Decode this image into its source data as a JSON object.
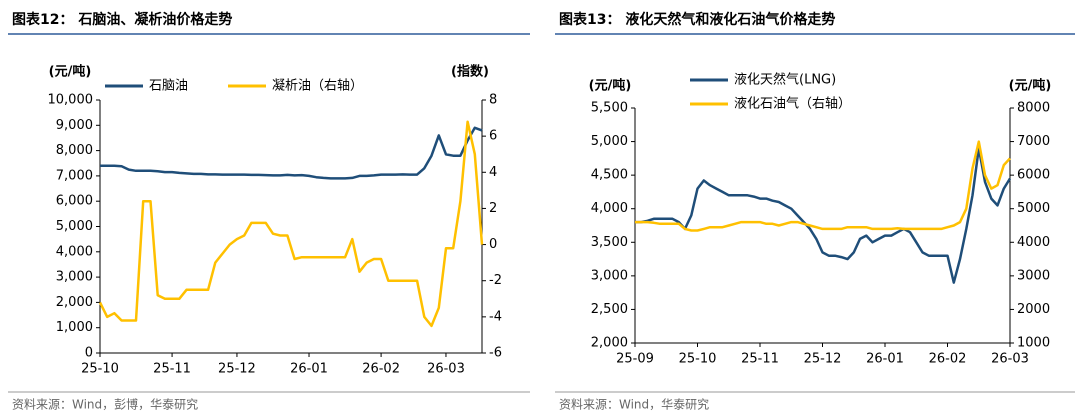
{
  "chart_data": [
    {
      "type": "line",
      "title": "图表12：  石脑油、凝析油价格走势",
      "source": "资料来源：Wind，彭博，华泰研究",
      "ylabel": "(元/吨)",
      "y2label": "(指数)",
      "categories": [
        "25-10",
        null,
        null,
        null,
        null,
        null,
        null,
        null,
        null,
        null,
        "25-11",
        null,
        null,
        null,
        null,
        null,
        null,
        null,
        null,
        "25-12",
        null,
        null,
        null,
        null,
        null,
        null,
        null,
        null,
        null,
        "26-01",
        null,
        null,
        null,
        null,
        null,
        null,
        null,
        null,
        null,
        "26-02",
        null,
        null,
        null,
        null,
        null,
        null,
        null,
        null,
        "26-03",
        null,
        null,
        null,
        null,
        null
      ],
      "ylim": [
        0,
        10000
      ],
      "yticks": [
        0,
        {
          "value": 1000,
          "label": "1,000"
        },
        {
          "value": 2000,
          "label": "2,000"
        },
        {
          "value": 3000,
          "label": "3,000"
        },
        {
          "value": 4000,
          "label": "4,000"
        },
        {
          "value": 5000,
          "label": "5,000"
        },
        {
          "value": 6000,
          "label": "6,000"
        },
        {
          "value": 7000,
          "label": "7,000"
        },
        {
          "value": 8000,
          "label": "8,000"
        },
        {
          "value": 9000,
          "label": "9,000"
        },
        {
          "value": 10000,
          "label": "10,000"
        }
      ],
      "y2lim": [
        -6,
        8
      ],
      "y2ticks": [
        -6,
        -4,
        -2,
        0,
        2,
        4,
        6,
        8
      ],
      "legend": "top",
      "series": [
        {
          "name": "石脑油",
          "color": "#1f4e79",
          "values": [
            7400,
            7400,
            7400,
            7380,
            7250,
            7200,
            7200,
            7200,
            7180,
            7150,
            7150,
            7120,
            7100,
            7080,
            7080,
            7060,
            7060,
            7050,
            7050,
            7050,
            7050,
            7040,
            7040,
            7030,
            7020,
            7020,
            7040,
            7020,
            7030,
            7000,
            6950,
            6920,
            6900,
            6900,
            6900,
            6920,
            7000,
            7000,
            7020,
            7050,
            7050,
            7050,
            7060,
            7050,
            7050,
            7300,
            7800,
            8600,
            7850,
            7800,
            7800,
            8400,
            8900,
            8800
          ]
        },
        {
          "name": "凝析油（右轴）",
          "color": "#ffc000",
          "axis": "y2",
          "values": [
            -3.2,
            -4,
            -3.8,
            -4.2,
            -4.2,
            -4.2,
            2.4,
            2.4,
            -2.8,
            -3,
            -3,
            -3,
            -2.5,
            -2.5,
            -2.5,
            -2.5,
            -1,
            -0.5,
            0,
            0.3,
            0.5,
            1.2,
            1.2,
            1.2,
            0.6,
            0.5,
            0.5,
            -0.8,
            -0.7,
            -0.7,
            -0.7,
            -0.7,
            -0.7,
            -0.7,
            -0.7,
            0.3,
            -1.5,
            -1,
            -0.8,
            -0.8,
            -2,
            -2,
            -2,
            -2,
            -2,
            -4,
            -4.5,
            -3.5,
            -0.2,
            -0.2,
            2.4,
            6.8,
            5,
            0
          ]
        }
      ]
    },
    {
      "type": "line",
      "title": "图表13：  液化天然气和液化石油气价格走势",
      "source": "资料来源：Wind，华泰研究",
      "ylabel": "(元/吨)",
      "y2label": "(元/吨)",
      "categories": [
        "25-09",
        null,
        null,
        null,
        null,
        null,
        null,
        null,
        null,
        null,
        "25-10",
        null,
        null,
        null,
        null,
        null,
        null,
        null,
        null,
        null,
        "25-11",
        null,
        null,
        null,
        null,
        null,
        null,
        null,
        null,
        null,
        "25-12",
        null,
        null,
        null,
        null,
        null,
        null,
        null,
        null,
        null,
        "26-01",
        null,
        null,
        null,
        null,
        null,
        null,
        null,
        null,
        null,
        "26-02",
        null,
        null,
        null,
        null,
        null,
        null,
        null,
        null,
        null,
        "26-03"
      ],
      "ylim": [
        2000,
        5500
      ],
      "yticks": [
        {
          "value": 2000,
          "label": "2,000"
        },
        {
          "value": 2500,
          "label": "2,500"
        },
        {
          "value": 3000,
          "label": "3,000"
        },
        {
          "value": 3500,
          "label": "3,500"
        },
        {
          "value": 4000,
          "label": "4,000"
        },
        {
          "value": 4500,
          "label": "4,500"
        },
        {
          "value": 5000,
          "label": "5,000"
        },
        {
          "value": 5500,
          "label": "5,500"
        }
      ],
      "y2lim": [
        1000,
        8000
      ],
      "y2ticks": [
        1000,
        2000,
        3000,
        4000,
        5000,
        6000,
        7000,
        8000
      ],
      "legend": "top",
      "series": [
        {
          "name": "液化天然气(LNG)",
          "color": "#1f4e79",
          "values": [
            3800,
            3800,
            3820,
            3850,
            3850,
            3850,
            3850,
            3800,
            3700,
            3900,
            4300,
            4420,
            4350,
            4300,
            4250,
            4200,
            4200,
            4200,
            4200,
            4180,
            4150,
            4150,
            4120,
            4100,
            4050,
            4000,
            3900,
            3800,
            3700,
            3550,
            3350,
            3300,
            3300,
            3280,
            3250,
            3350,
            3550,
            3600,
            3500,
            3550,
            3600,
            3600,
            3650,
            3700,
            3650,
            3500,
            3350,
            3300,
            3300,
            3300,
            3300,
            2900,
            3250,
            3700,
            4200,
            4900,
            4400,
            4150,
            4050,
            4300,
            4450
          ]
        },
        {
          "name": "液化石油气（右轴）",
          "color": "#ffc000",
          "axis": "y2",
          "values": [
            4600,
            4600,
            4600,
            4580,
            4550,
            4550,
            4550,
            4550,
            4400,
            4350,
            4350,
            4400,
            4450,
            4450,
            4450,
            4500,
            4550,
            4600,
            4600,
            4600,
            4600,
            4550,
            4550,
            4500,
            4550,
            4600,
            4600,
            4550,
            4500,
            4450,
            4400,
            4400,
            4400,
            4400,
            4450,
            4450,
            4450,
            4450,
            4400,
            4400,
            4400,
            4400,
            4420,
            4400,
            4400,
            4400,
            4400,
            4400,
            4400,
            4400,
            4450,
            4500,
            4600,
            5000,
            6200,
            7000,
            6000,
            5600,
            5700,
            6300,
            6500
          ]
        }
      ]
    }
  ]
}
